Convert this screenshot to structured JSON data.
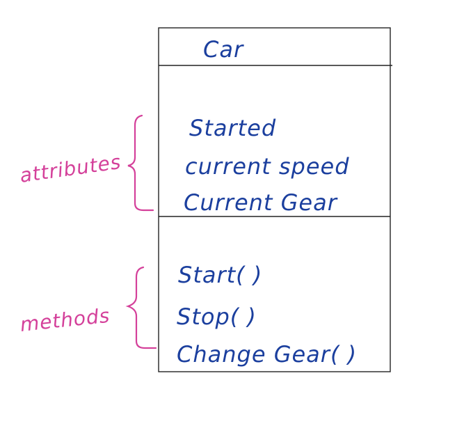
{
  "diagram": {
    "class_name": "Car",
    "attributes": [
      "Started",
      "current speed",
      "Current Gear"
    ],
    "methods": [
      "Start( )",
      "Stop( )",
      "Change Gear( )"
    ],
    "annotations": {
      "attributes": "attributes",
      "methods": "methods"
    },
    "colors": {
      "ink": "#1b3f9e",
      "annotation": "#d4409a",
      "lines": "#222222"
    }
  }
}
